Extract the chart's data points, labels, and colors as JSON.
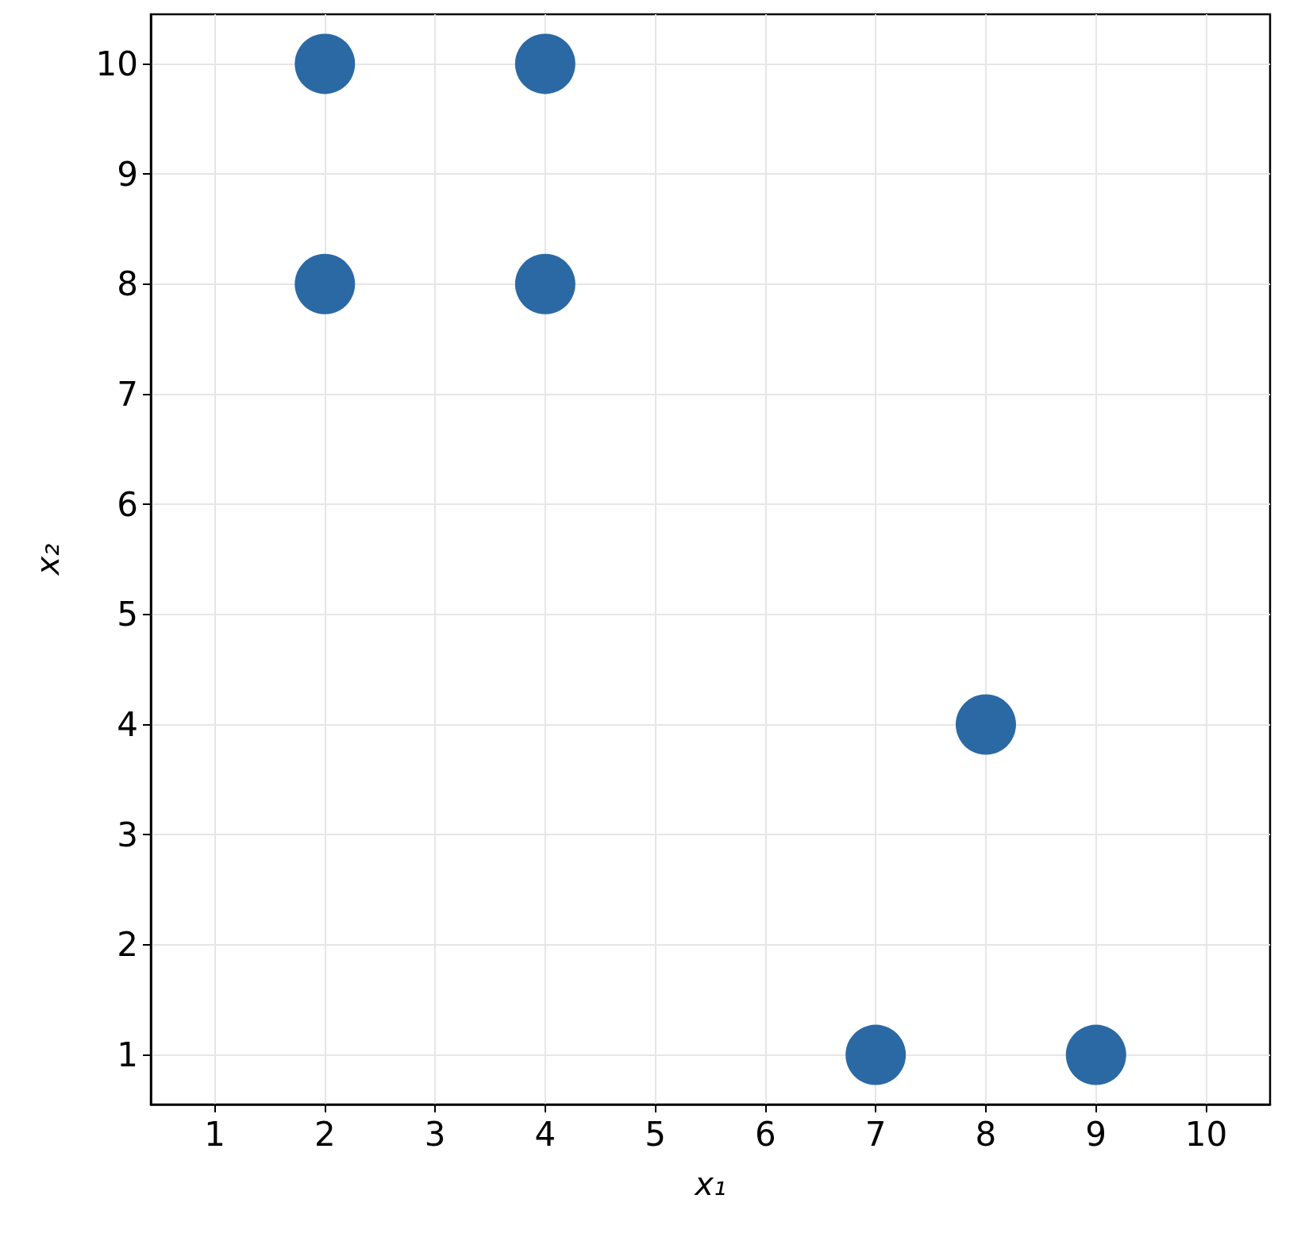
{
  "chart_data": {
    "type": "scatter",
    "xlabel": "x₁",
    "ylabel": "x₂",
    "x": [
      2,
      4,
      2,
      4,
      8,
      7,
      9
    ],
    "values": [
      10,
      10,
      8,
      8,
      4,
      1,
      1
    ],
    "color": "#2b69a5",
    "marker": "circle",
    "grid": true,
    "xlim": [
      0.42,
      10.58
    ],
    "xticks": [
      1,
      2,
      3,
      4,
      5,
      6,
      7,
      8,
      9,
      10
    ],
    "ylim": [
      0.55,
      10.45
    ],
    "yticks": [
      1,
      2,
      3,
      4,
      5,
      6,
      7,
      8,
      9,
      10
    ]
  }
}
